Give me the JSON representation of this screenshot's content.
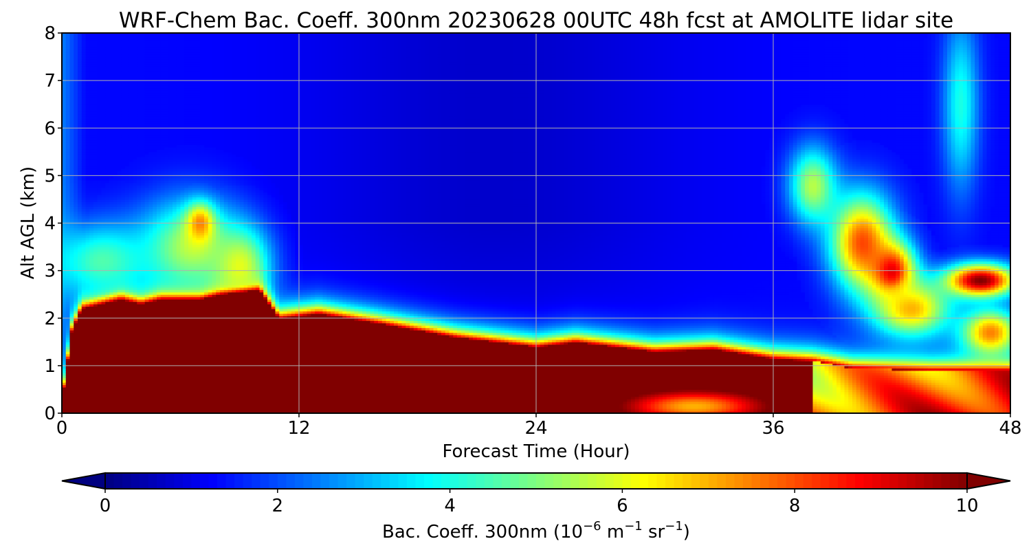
{
  "chart_data": {
    "type": "heatmap",
    "title": "WRF-Chem Bac. Coeff. 300nm  20230628 00UTC 48h fcst at AMOLITE lidar site",
    "xlabel": "Forecast Time (Hour)",
    "ylabel": "Alt AGL (km)",
    "xlim": [
      0,
      48
    ],
    "ylim": [
      0,
      8
    ],
    "xticks": [
      "0",
      "12",
      "24",
      "36",
      "48"
    ],
    "yticks": [
      "0",
      "1",
      "2",
      "3",
      "4",
      "5",
      "6",
      "7",
      "8"
    ],
    "grid": true,
    "colormap": "jet",
    "colorbar": {
      "label_main": "Bac. Coeff. 300nm  (10",
      "label_exp1": "−6",
      "label_mid": " m",
      "label_exp2": "−1",
      "label_mid2": " sr",
      "label_exp3": "−1",
      "label_end": ")",
      "range": [
        0,
        10
      ],
      "ticks": [
        "0",
        "2",
        "4",
        "6",
        "8",
        "10"
      ],
      "extend": "both",
      "levels": 100
    },
    "boundary_layer_top_km": [
      {
        "t": 0,
        "z": 0.2
      },
      {
        "t": 0.5,
        "z": 1.7
      },
      {
        "t": 1,
        "z": 2.2
      },
      {
        "t": 3,
        "z": 2.4
      },
      {
        "t": 4,
        "z": 2.3
      },
      {
        "t": 5,
        "z": 2.4
      },
      {
        "t": 7,
        "z": 2.4
      },
      {
        "t": 8,
        "z": 2.5
      },
      {
        "t": 10,
        "z": 2.6
      },
      {
        "t": 11,
        "z": 2.0
      },
      {
        "t": 13,
        "z": 2.1
      },
      {
        "t": 16,
        "z": 1.9
      },
      {
        "t": 20,
        "z": 1.6
      },
      {
        "t": 24,
        "z": 1.4
      },
      {
        "t": 26,
        "z": 1.5
      },
      {
        "t": 30,
        "z": 1.3
      },
      {
        "t": 33,
        "z": 1.35
      },
      {
        "t": 36,
        "z": 1.15
      },
      {
        "t": 38,
        "z": 1.1
      },
      {
        "t": 40,
        "z": 0.95
      },
      {
        "t": 44,
        "z": 0.9
      },
      {
        "t": 48,
        "z": 0.9
      }
    ],
    "features": [
      {
        "note": "aerosol plume",
        "t": 2,
        "z": 3.2,
        "wt": 2.5,
        "wz": 0.8,
        "value": 4.5
      },
      {
        "note": "aerosol plume",
        "t": 6.5,
        "z": 3.5,
        "wt": 2.5,
        "wz": 1.0,
        "value": 5.5
      },
      {
        "note": "aerosol plume",
        "t": 9,
        "z": 3.1,
        "wt": 1.5,
        "wz": 0.8,
        "value": 6.0
      },
      {
        "note": "aerosol plume",
        "t": 7,
        "z": 4.0,
        "wt": 0.7,
        "wz": 0.4,
        "value": 7.5
      },
      {
        "note": "aerosol plume",
        "t": 32,
        "z": 0.2,
        "wt": 4,
        "wz": 0.35,
        "value": 6.0
      },
      {
        "note": "aerosol plume",
        "t": 38,
        "z": 4.8,
        "wt": 1.2,
        "wz": 0.8,
        "value": 5.5
      },
      {
        "note": "aerosol plume",
        "t": 40.5,
        "z": 3.6,
        "wt": 1.6,
        "wz": 1.0,
        "value": 8.0
      },
      {
        "note": "aerosol plume",
        "t": 42,
        "z": 3.0,
        "wt": 1.2,
        "wz": 0.6,
        "value": 9.0
      },
      {
        "note": "aerosol plume",
        "t": 43,
        "z": 2.2,
        "wt": 2.0,
        "wz": 0.6,
        "value": 7.0
      },
      {
        "note": "aerosol plume",
        "t": 45.5,
        "z": 6.5,
        "wt": 0.9,
        "wz": 1.8,
        "value": 4.0
      },
      {
        "note": "aerosol plume",
        "t": 46.5,
        "z": 2.8,
        "wt": 1.8,
        "wz": 0.35,
        "value": 10.0
      },
      {
        "note": "aerosol plume",
        "t": 47,
        "z": 1.7,
        "wt": 1.5,
        "wz": 0.5,
        "value": 7.5
      }
    ]
  }
}
